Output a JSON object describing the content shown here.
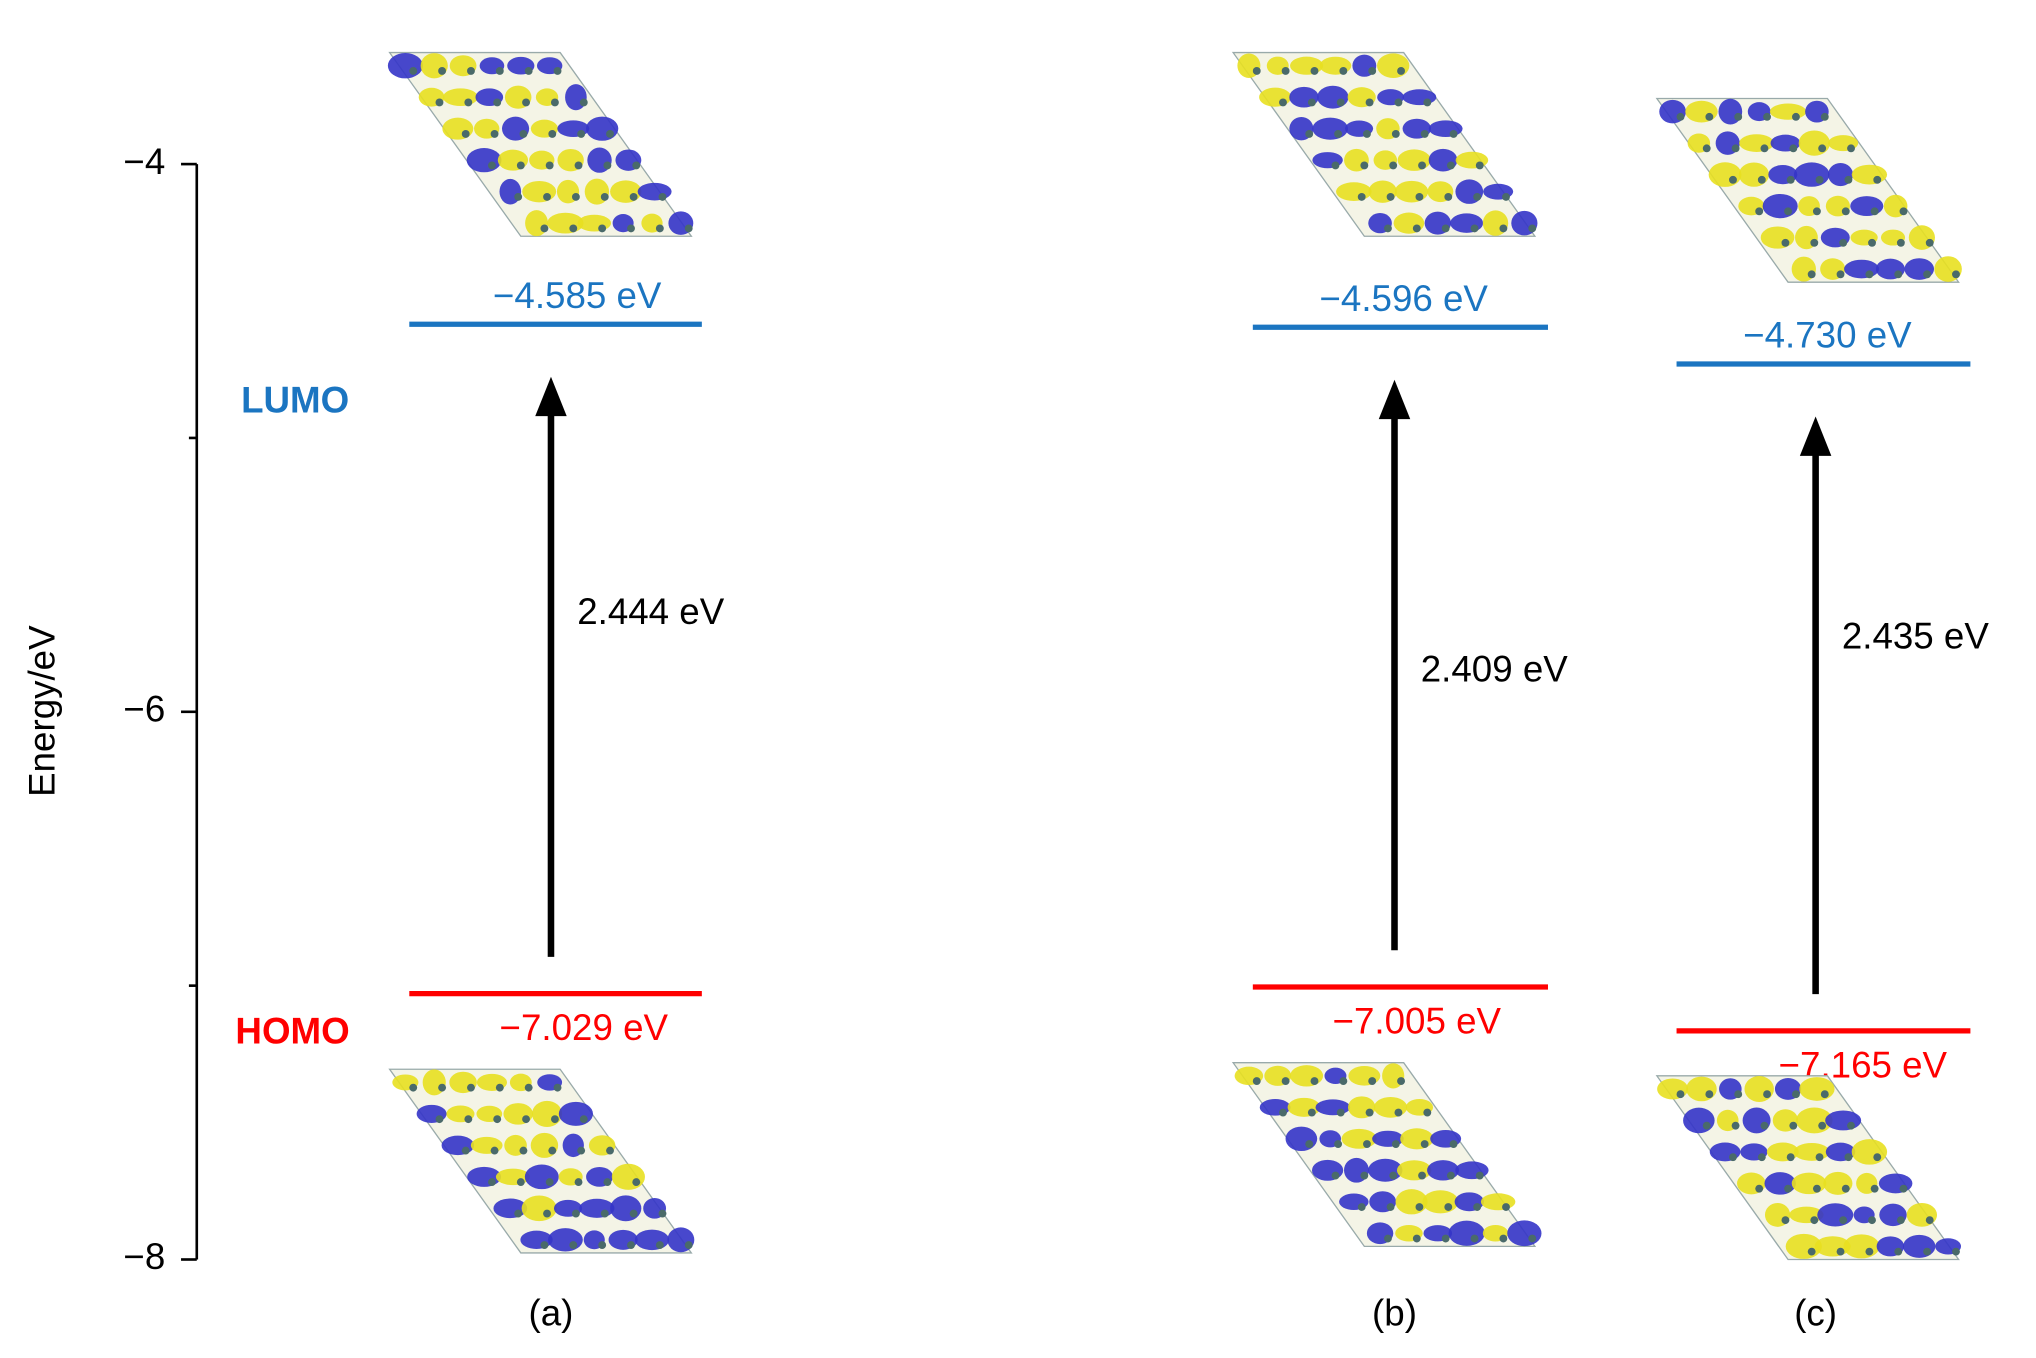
{
  "chart_data": {
    "type": "level",
    "y_label": "Energy/eV",
    "ylim": [
      -8,
      -4
    ],
    "yticks": [
      {
        "value": -8,
        "label": "−8"
      },
      {
        "value": -6,
        "label": "−6"
      },
      {
        "value": -4,
        "label": "−4"
      }
    ],
    "minor_yticks": [
      -7,
      -5
    ],
    "lumo_name": "LUMO",
    "homo_name": "HOMO",
    "lumo_color": "#1b75c1",
    "homo_color": "#ff0000",
    "panels": [
      {
        "name": "(a)",
        "lumo": -4.585,
        "lumo_label": "−4.585 eV",
        "homo": -7.029,
        "homo_label": "−7.029 eV",
        "gap": 2.444,
        "gap_label": "2.444 eV"
      },
      {
        "name": "(b)",
        "lumo": -4.596,
        "lumo_label": "−4.596 eV",
        "homo": -7.005,
        "homo_label": "−7.005 eV",
        "gap": 2.409,
        "gap_label": "2.409 eV"
      },
      {
        "name": "(c)",
        "lumo": -4.73,
        "lumo_label": "−4.730 eV",
        "homo": -7.165,
        "homo_label": "−7.165 eV",
        "gap": 2.435,
        "gap_label": "2.435 eV"
      }
    ]
  }
}
